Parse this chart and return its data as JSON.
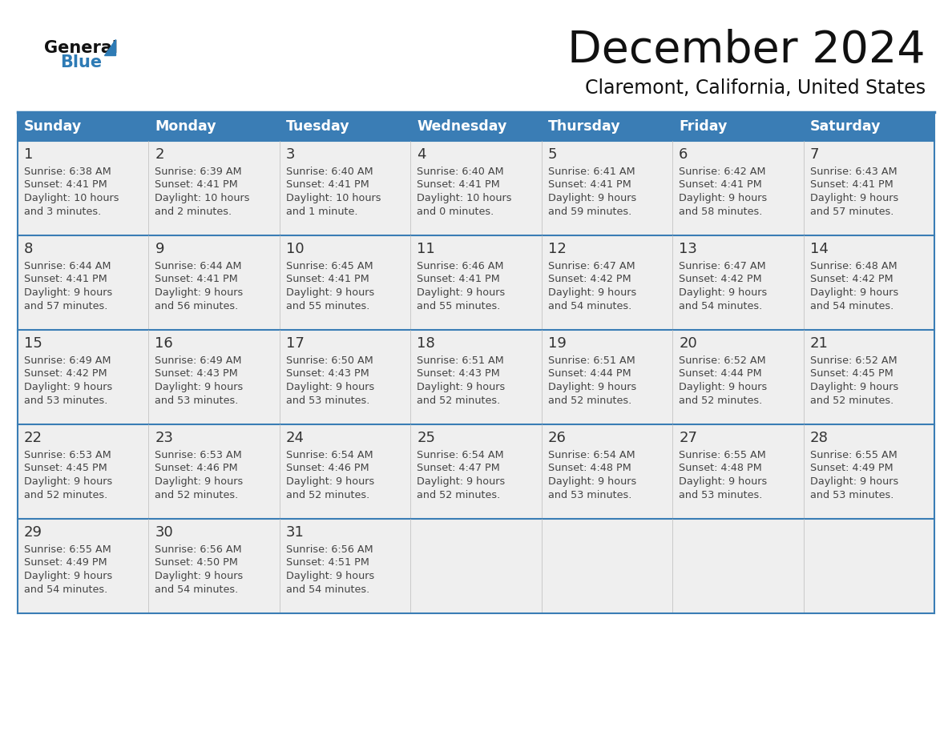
{
  "title": "December 2024",
  "subtitle": "Claremont, California, United States",
  "header_bg_color": "#3A7DB5",
  "header_text_color": "#FFFFFF",
  "day_names": [
    "Sunday",
    "Monday",
    "Tuesday",
    "Wednesday",
    "Thursday",
    "Friday",
    "Saturday"
  ],
  "row_bg_color": "#EFEFEF",
  "cell_border_color": "#3A7DB5",
  "date_text_color": "#333333",
  "content_text_color": "#444444",
  "title_color": "#111111",
  "subtitle_color": "#111111",
  "calendar_data": [
    [
      {
        "day": 1,
        "sunrise": "6:38 AM",
        "sunset": "4:41 PM",
        "daylight_line1": "10 hours",
        "daylight_line2": "and 3 minutes."
      },
      {
        "day": 2,
        "sunrise": "6:39 AM",
        "sunset": "4:41 PM",
        "daylight_line1": "10 hours",
        "daylight_line2": "and 2 minutes."
      },
      {
        "day": 3,
        "sunrise": "6:40 AM",
        "sunset": "4:41 PM",
        "daylight_line1": "10 hours",
        "daylight_line2": "and 1 minute."
      },
      {
        "day": 4,
        "sunrise": "6:40 AM",
        "sunset": "4:41 PM",
        "daylight_line1": "10 hours",
        "daylight_line2": "and 0 minutes."
      },
      {
        "day": 5,
        "sunrise": "6:41 AM",
        "sunset": "4:41 PM",
        "daylight_line1": "9 hours",
        "daylight_line2": "and 59 minutes."
      },
      {
        "day": 6,
        "sunrise": "6:42 AM",
        "sunset": "4:41 PM",
        "daylight_line1": "9 hours",
        "daylight_line2": "and 58 minutes."
      },
      {
        "day": 7,
        "sunrise": "6:43 AM",
        "sunset": "4:41 PM",
        "daylight_line1": "9 hours",
        "daylight_line2": "and 57 minutes."
      }
    ],
    [
      {
        "day": 8,
        "sunrise": "6:44 AM",
        "sunset": "4:41 PM",
        "daylight_line1": "9 hours",
        "daylight_line2": "and 57 minutes."
      },
      {
        "day": 9,
        "sunrise": "6:44 AM",
        "sunset": "4:41 PM",
        "daylight_line1": "9 hours",
        "daylight_line2": "and 56 minutes."
      },
      {
        "day": 10,
        "sunrise": "6:45 AM",
        "sunset": "4:41 PM",
        "daylight_line1": "9 hours",
        "daylight_line2": "and 55 minutes."
      },
      {
        "day": 11,
        "sunrise": "6:46 AM",
        "sunset": "4:41 PM",
        "daylight_line1": "9 hours",
        "daylight_line2": "and 55 minutes."
      },
      {
        "day": 12,
        "sunrise": "6:47 AM",
        "sunset": "4:42 PM",
        "daylight_line1": "9 hours",
        "daylight_line2": "and 54 minutes."
      },
      {
        "day": 13,
        "sunrise": "6:47 AM",
        "sunset": "4:42 PM",
        "daylight_line1": "9 hours",
        "daylight_line2": "and 54 minutes."
      },
      {
        "day": 14,
        "sunrise": "6:48 AM",
        "sunset": "4:42 PM",
        "daylight_line1": "9 hours",
        "daylight_line2": "and 54 minutes."
      }
    ],
    [
      {
        "day": 15,
        "sunrise": "6:49 AM",
        "sunset": "4:42 PM",
        "daylight_line1": "9 hours",
        "daylight_line2": "and 53 minutes."
      },
      {
        "day": 16,
        "sunrise": "6:49 AM",
        "sunset": "4:43 PM",
        "daylight_line1": "9 hours",
        "daylight_line2": "and 53 minutes."
      },
      {
        "day": 17,
        "sunrise": "6:50 AM",
        "sunset": "4:43 PM",
        "daylight_line1": "9 hours",
        "daylight_line2": "and 53 minutes."
      },
      {
        "day": 18,
        "sunrise": "6:51 AM",
        "sunset": "4:43 PM",
        "daylight_line1": "9 hours",
        "daylight_line2": "and 52 minutes."
      },
      {
        "day": 19,
        "sunrise": "6:51 AM",
        "sunset": "4:44 PM",
        "daylight_line1": "9 hours",
        "daylight_line2": "and 52 minutes."
      },
      {
        "day": 20,
        "sunrise": "6:52 AM",
        "sunset": "4:44 PM",
        "daylight_line1": "9 hours",
        "daylight_line2": "and 52 minutes."
      },
      {
        "day": 21,
        "sunrise": "6:52 AM",
        "sunset": "4:45 PM",
        "daylight_line1": "9 hours",
        "daylight_line2": "and 52 minutes."
      }
    ],
    [
      {
        "day": 22,
        "sunrise": "6:53 AM",
        "sunset": "4:45 PM",
        "daylight_line1": "9 hours",
        "daylight_line2": "and 52 minutes."
      },
      {
        "day": 23,
        "sunrise": "6:53 AM",
        "sunset": "4:46 PM",
        "daylight_line1": "9 hours",
        "daylight_line2": "and 52 minutes."
      },
      {
        "day": 24,
        "sunrise": "6:54 AM",
        "sunset": "4:46 PM",
        "daylight_line1": "9 hours",
        "daylight_line2": "and 52 minutes."
      },
      {
        "day": 25,
        "sunrise": "6:54 AM",
        "sunset": "4:47 PM",
        "daylight_line1": "9 hours",
        "daylight_line2": "and 52 minutes."
      },
      {
        "day": 26,
        "sunrise": "6:54 AM",
        "sunset": "4:48 PM",
        "daylight_line1": "9 hours",
        "daylight_line2": "and 53 minutes."
      },
      {
        "day": 27,
        "sunrise": "6:55 AM",
        "sunset": "4:48 PM",
        "daylight_line1": "9 hours",
        "daylight_line2": "and 53 minutes."
      },
      {
        "day": 28,
        "sunrise": "6:55 AM",
        "sunset": "4:49 PM",
        "daylight_line1": "9 hours",
        "daylight_line2": "and 53 minutes."
      }
    ],
    [
      {
        "day": 29,
        "sunrise": "6:55 AM",
        "sunset": "4:49 PM",
        "daylight_line1": "9 hours",
        "daylight_line2": "and 54 minutes."
      },
      {
        "day": 30,
        "sunrise": "6:56 AM",
        "sunset": "4:50 PM",
        "daylight_line1": "9 hours",
        "daylight_line2": "and 54 minutes."
      },
      {
        "day": 31,
        "sunrise": "6:56 AM",
        "sunset": "4:51 PM",
        "daylight_line1": "9 hours",
        "daylight_line2": "and 54 minutes."
      },
      null,
      null,
      null,
      null
    ]
  ],
  "logo_text_general": "General",
  "logo_text_blue": "Blue",
  "logo_color_general": "#111111",
  "logo_color_blue": "#2E7BB5"
}
